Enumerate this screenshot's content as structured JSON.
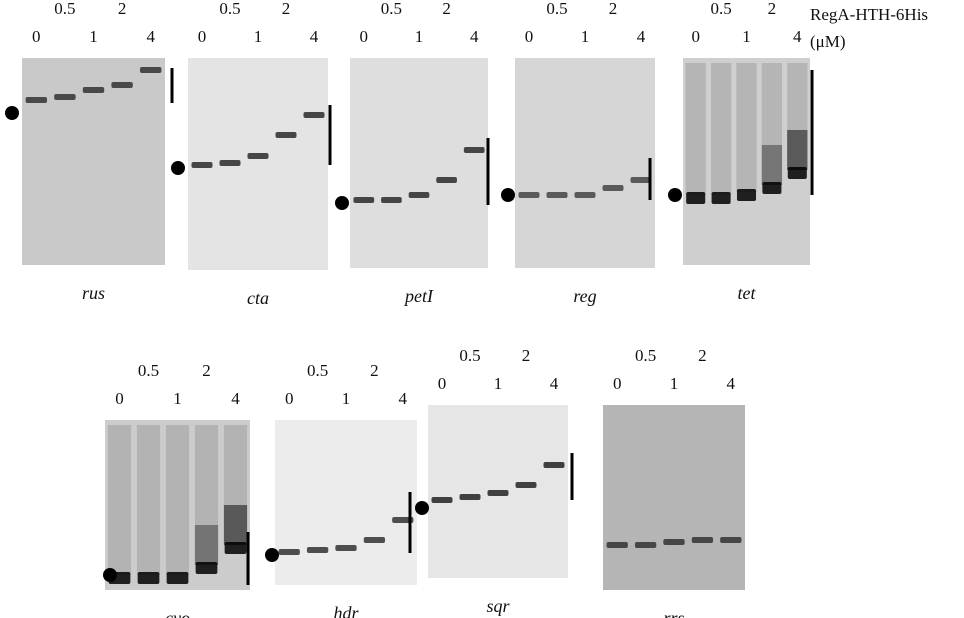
{
  "header": {
    "protein": "RegA-HTH-6His",
    "unit": "(μM)"
  },
  "panels": [
    {
      "gene": "rus",
      "lanes": [
        "0",
        "0.5",
        "1",
        "2",
        "4"
      ]
    },
    {
      "gene": "cta",
      "lanes": [
        "0",
        "0.5",
        "1",
        "2",
        "4"
      ]
    },
    {
      "gene": "petI",
      "lanes": [
        "0",
        "0.5",
        "1",
        "2",
        "4"
      ]
    },
    {
      "gene": "reg",
      "lanes": [
        "0",
        "0.5",
        "1",
        "2",
        "4"
      ]
    },
    {
      "gene": "tet",
      "lanes": [
        "0",
        "0.5",
        "1",
        "2",
        "4"
      ]
    },
    {
      "gene": "cyo",
      "lanes": [
        "0",
        "0.5",
        "1",
        "2",
        "4"
      ]
    },
    {
      "gene": "hdr",
      "lanes": [
        "0",
        "0.5",
        "1",
        "2",
        "4"
      ]
    },
    {
      "gene": "sqr",
      "lanes": [
        "0",
        "0.5",
        "1",
        "2",
        "4"
      ]
    },
    {
      "gene": "rrs",
      "lanes": [
        "0",
        "0.5",
        "1",
        "2",
        "4"
      ]
    }
  ]
}
